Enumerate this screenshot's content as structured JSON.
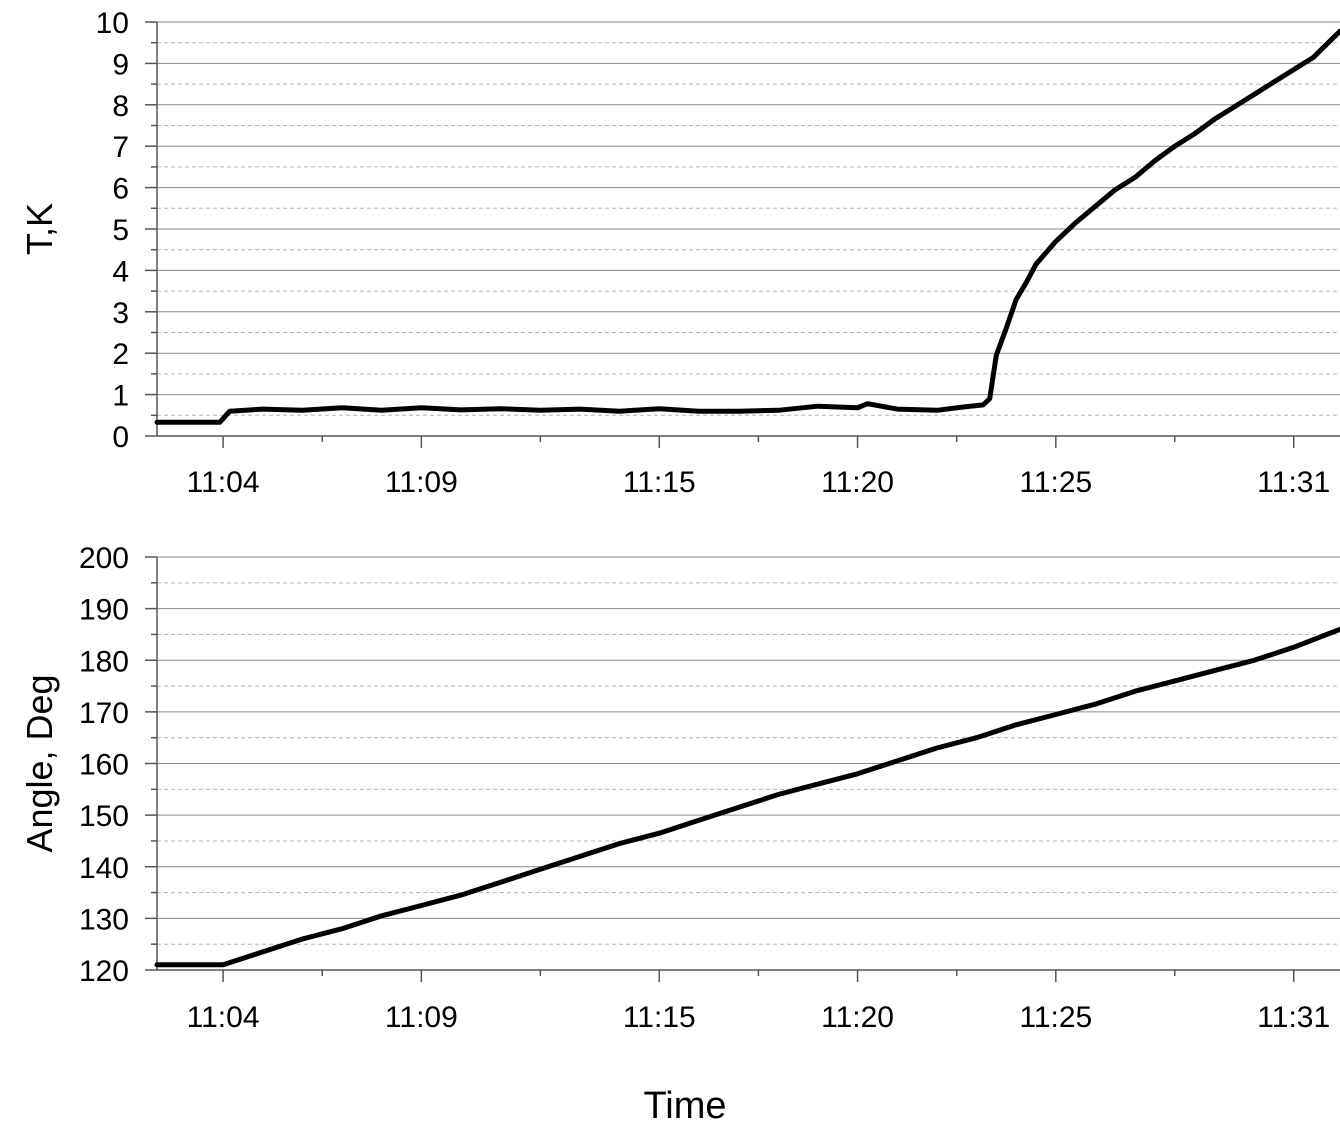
{
  "chart_data": [
    {
      "type": "line",
      "ylabel": "T,K",
      "xlabel": "",
      "ylim": [
        0,
        10
      ],
      "yticks": [
        "0",
        "1",
        "2",
        "3",
        "4",
        "5",
        "6",
        "7",
        "8",
        "9",
        "10"
      ],
      "xticks": [
        "11:04",
        "11:09",
        "11:15",
        "11:20",
        "11:25",
        "11:31"
      ],
      "xlim": [
        "11:02:20",
        "11:32:10"
      ],
      "grid": "major solid, minor dashed",
      "legend": "none",
      "line_color": "#000000",
      "series": [
        {
          "x": [
            "11:02:20",
            "11:03:55",
            "11:04:10",
            "11:05:00",
            "11:06:00",
            "11:07:00",
            "11:08:00",
            "11:09:00",
            "11:10:00",
            "11:11:00",
            "11:12:00",
            "11:13:00",
            "11:14:00",
            "11:15:00",
            "11:16:00",
            "11:17:00",
            "11:18:00",
            "11:19:00",
            "11:20:00",
            "11:20:15",
            "11:21:00",
            "11:22:00",
            "11:22:40",
            "11:23:10",
            "11:23:20",
            "11:23:30",
            "11:23:45",
            "11:24:00",
            "11:24:15",
            "11:24:30",
            "11:25:00",
            "11:25:30",
            "11:26:00",
            "11:26:30",
            "11:27:00",
            "11:27:30",
            "11:28:00",
            "11:28:30",
            "11:29:00",
            "11:29:30",
            "11:30:00",
            "11:30:30",
            "11:31:00",
            "11:31:30",
            "11:32:10"
          ],
          "y": [
            0.33,
            0.33,
            0.6,
            0.65,
            0.62,
            0.68,
            0.62,
            0.68,
            0.63,
            0.66,
            0.62,
            0.65,
            0.6,
            0.66,
            0.6,
            0.6,
            0.62,
            0.72,
            0.68,
            0.78,
            0.65,
            0.62,
            0.7,
            0.75,
            0.9,
            1.95,
            2.6,
            3.3,
            3.7,
            4.15,
            4.7,
            5.15,
            5.55,
            5.95,
            6.25,
            6.65,
            7.0,
            7.3,
            7.65,
            7.95,
            8.25,
            8.55,
            8.85,
            9.15,
            9.78
          ]
        }
      ]
    },
    {
      "type": "line",
      "ylabel": "Angle, Deg",
      "xlabel": "Time",
      "ylim": [
        120,
        200
      ],
      "yticks": [
        "120",
        "130",
        "140",
        "150",
        "160",
        "170",
        "180",
        "190",
        "200"
      ],
      "xticks": [
        "11:04",
        "11:09",
        "11:15",
        "11:20",
        "11:25",
        "11:31"
      ],
      "xlim": [
        "11:02:20",
        "11:32:10"
      ],
      "grid": "major solid, minor dashed",
      "legend": "none",
      "line_color": "#000000",
      "series": [
        {
          "x": [
            "11:02:20",
            "11:04:00",
            "11:05:00",
            "11:06:00",
            "11:07:00",
            "11:08:00",
            "11:09:00",
            "11:10:00",
            "11:11:00",
            "11:12:00",
            "11:13:00",
            "11:14:00",
            "11:15:00",
            "11:16:00",
            "11:17:00",
            "11:18:00",
            "11:19:00",
            "11:20:00",
            "11:21:00",
            "11:22:00",
            "11:23:00",
            "11:24:00",
            "11:25:00",
            "11:26:00",
            "11:27:00",
            "11:28:00",
            "11:29:00",
            "11:30:00",
            "11:31:00",
            "11:32:10"
          ],
          "y": [
            121,
            121,
            123.5,
            126,
            128,
            130.5,
            132.5,
            134.5,
            137,
            139.5,
            142,
            144.5,
            146.5,
            149,
            151.5,
            154,
            156,
            158,
            160.5,
            163,
            165,
            167.5,
            169.5,
            171.5,
            174,
            176,
            178,
            180,
            182.5,
            186
          ]
        }
      ]
    }
  ]
}
